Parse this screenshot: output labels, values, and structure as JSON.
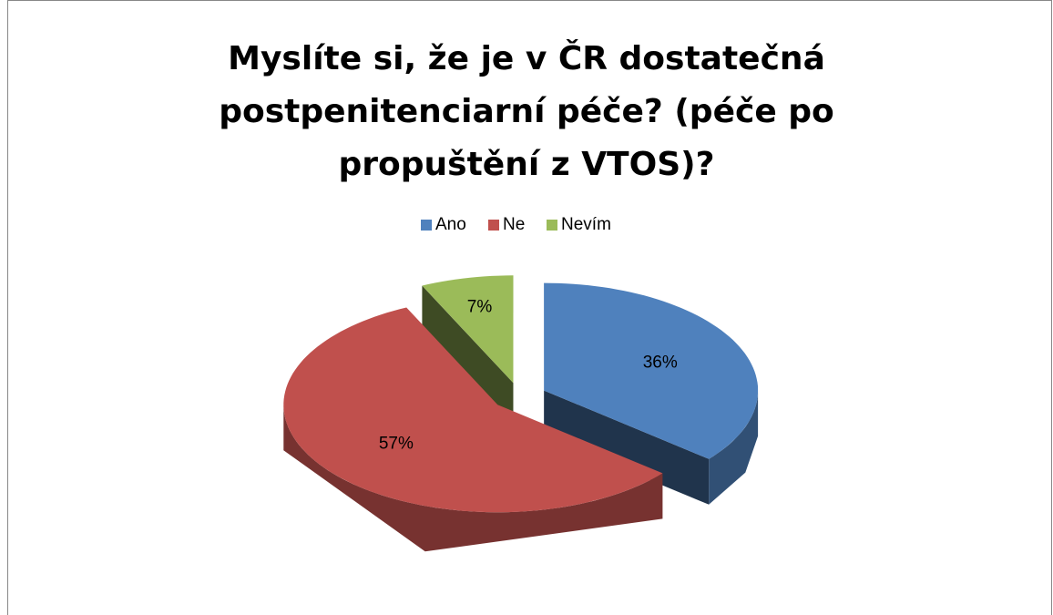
{
  "chart_data": {
    "type": "pie3d",
    "title": "Myslíte si, že je v ČR dostatečná postpenitenciarní péče? (péče po propuštění z VTOS)?",
    "categories": [
      "Ano",
      "Ne",
      "Nevím"
    ],
    "values": [
      36,
      57,
      7
    ],
    "value_labels": [
      "36%",
      "57%",
      "7%"
    ],
    "colors": [
      "#4f81bd",
      "#c0504d",
      "#9bbb59"
    ],
    "legend": "top"
  }
}
